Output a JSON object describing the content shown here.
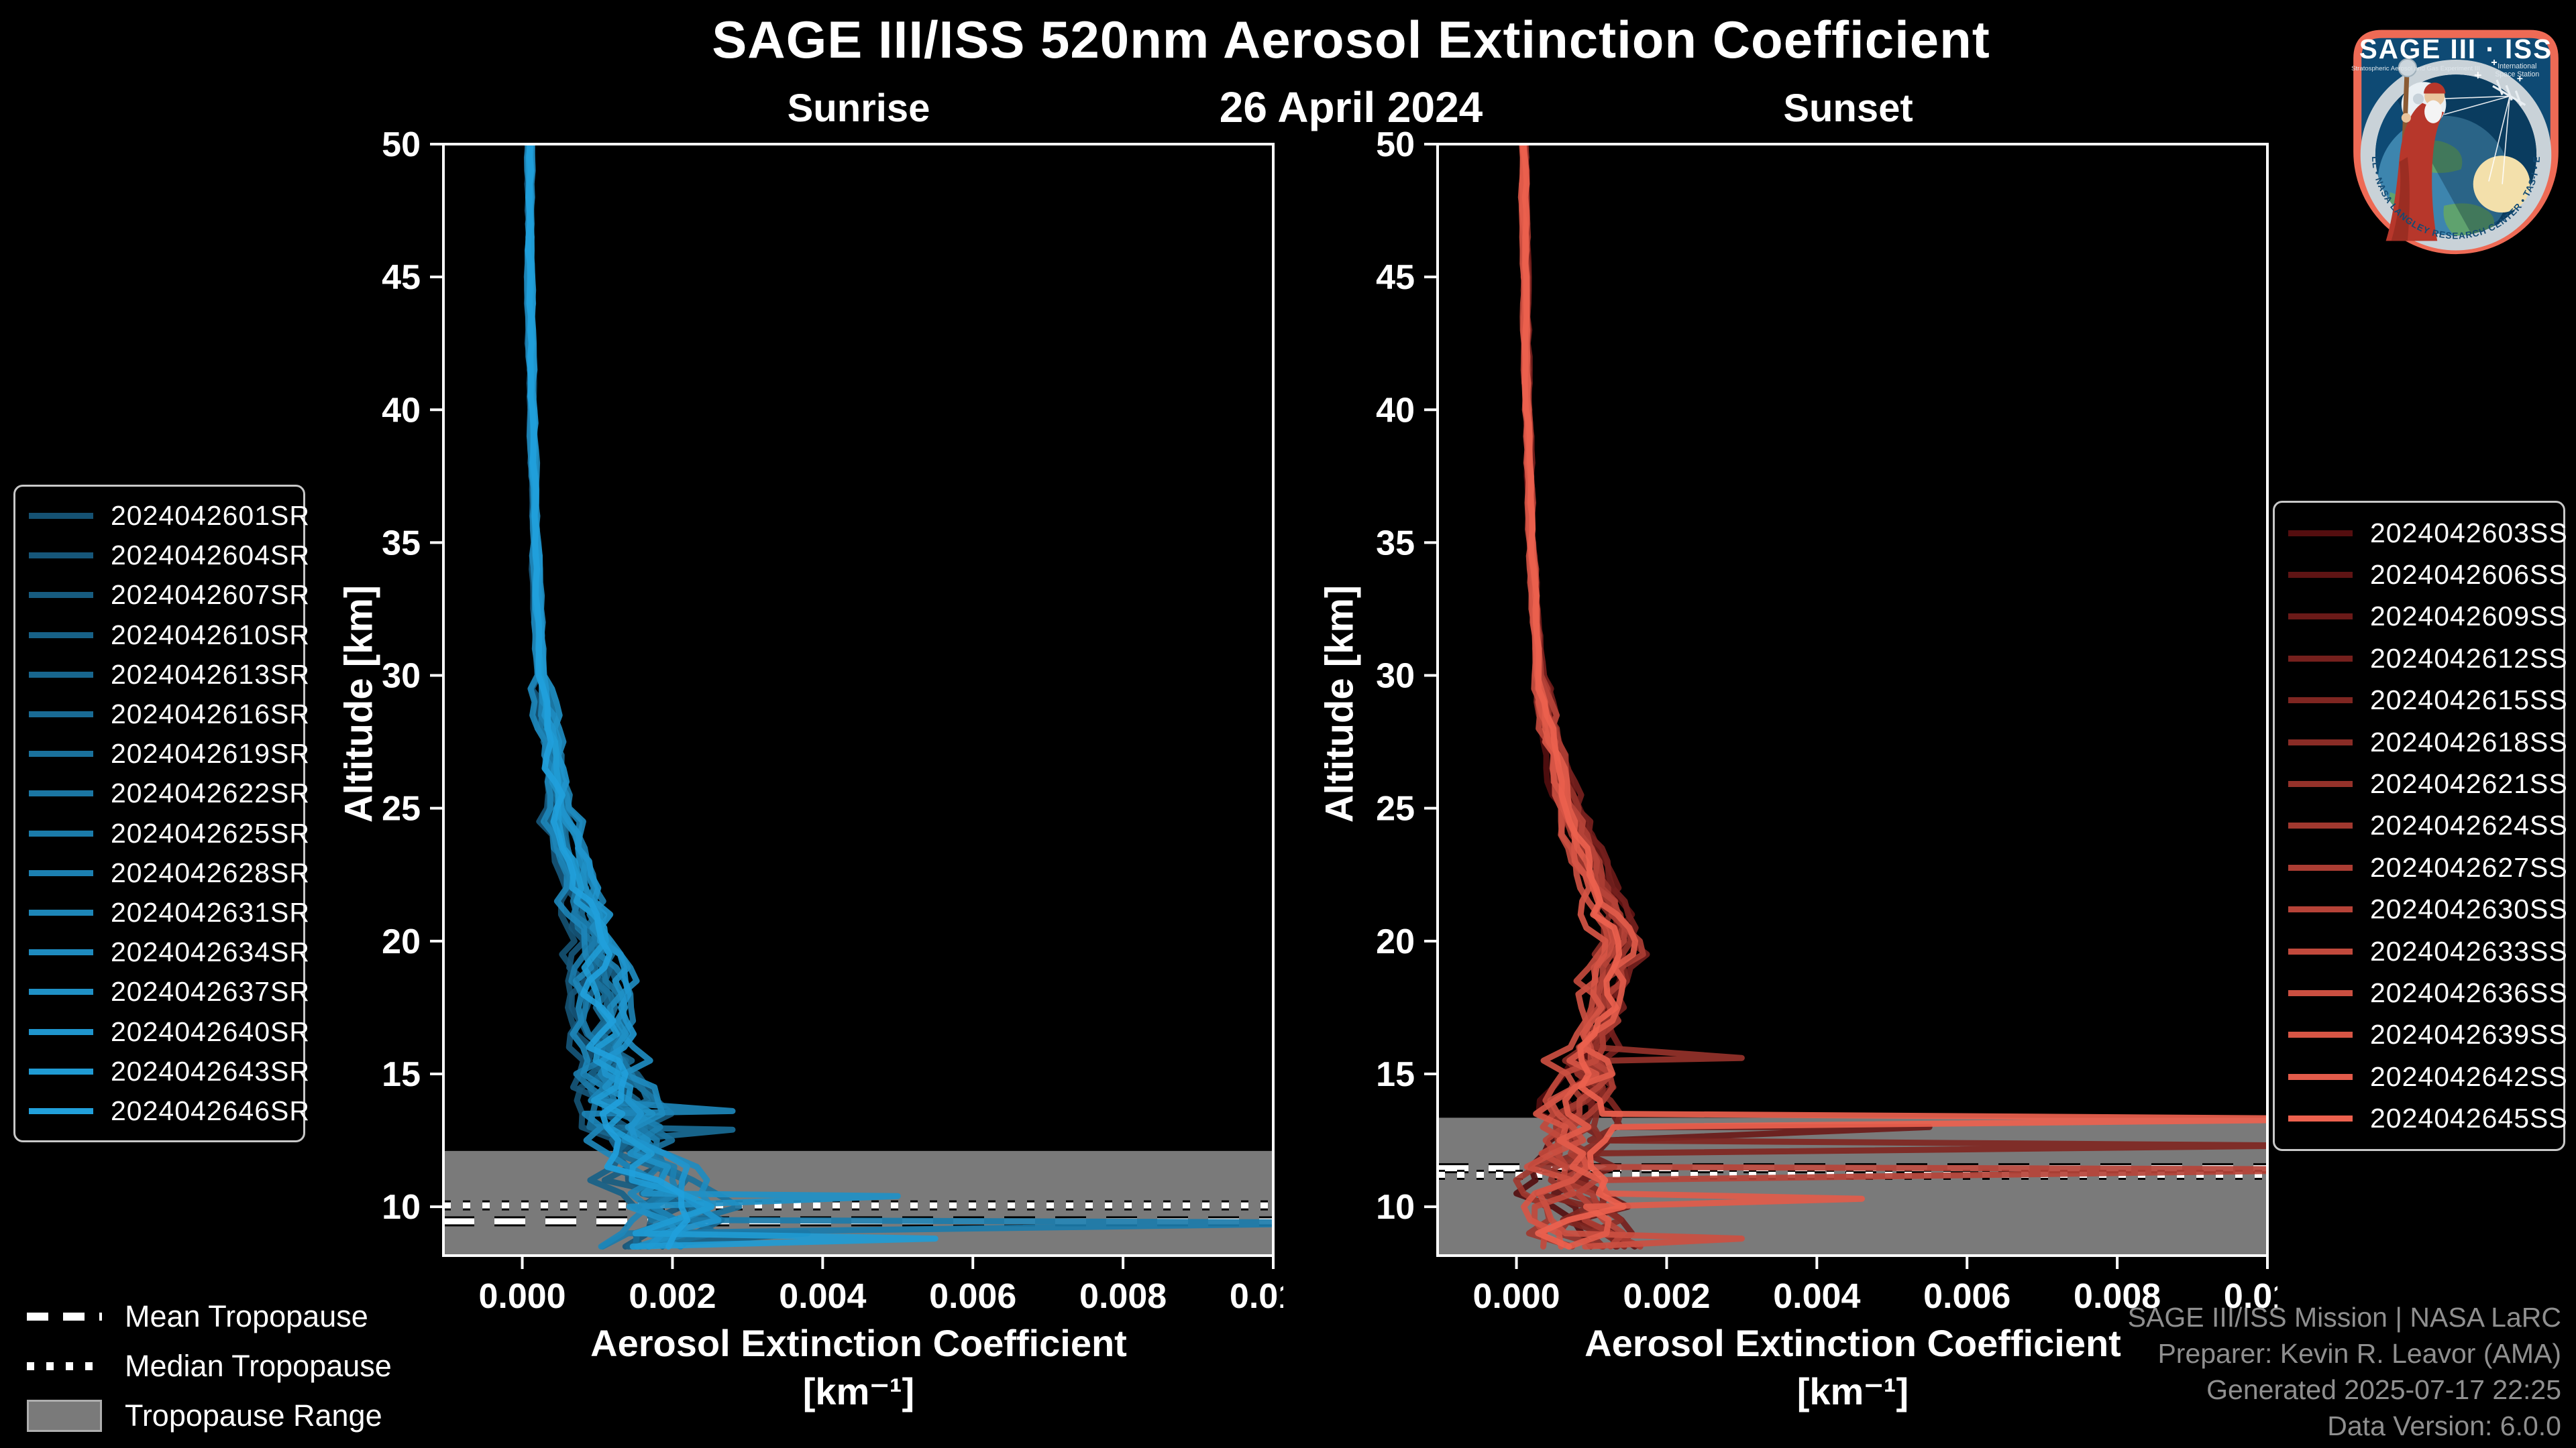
{
  "header": {
    "title": "SAGE III/ISS 520nm Aerosol Extinction Coefficient",
    "date": "26 April 2024",
    "left_panel_title": "Sunrise",
    "right_panel_title": "Sunset"
  },
  "axes": {
    "ylabel": "Altitude [km]",
    "xlabel_line1": "Aerosol Extinction Coefficient",
    "xlabel_line2": "[km⁻¹]"
  },
  "tropopause_legend": {
    "mean": "Mean Tropopause",
    "median": "Median Tropopause",
    "range": "Tropopause Range"
  },
  "credits": {
    "line1": "SAGE III/ISS Mission | NASA LaRC",
    "line2": "Preparer: Kevin R. Leavor (AMA)",
    "line3": "Generated 2025-07-17 22:25",
    "line4": "Data Version: 6.0.0"
  },
  "logo": {
    "title": "SAGE III · ISS",
    "subtitle_left": "Stratospheric Aerosol and Gas Experiment III",
    "subtitle_right_1": "International",
    "subtitle_right_2": "Space Station",
    "ring_text": "BALL • NASA LANGLEY RESEARCH CENTER • TAS-I • ESA"
  },
  "chart_data": [
    {
      "type": "line",
      "panel": "sunrise",
      "title": "Sunrise",
      "xlabel": "Aerosol Extinction Coefficient [km⁻¹]",
      "ylabel": "Altitude [km]",
      "xlim": [
        -0.00105,
        0.01
      ],
      "ylim": [
        8.16,
        50
      ],
      "xticks": [
        0.0,
        0.002,
        0.004,
        0.006,
        0.008,
        0.01
      ],
      "yticks": [
        10,
        15,
        20,
        25,
        30,
        35,
        40,
        45,
        50
      ],
      "grid": false,
      "legend_position": "outside-left",
      "line_color_start": "#155172",
      "line_color_end": "#21A0DB",
      "band_color": "#7a7a7a",
      "series": [
        "2024042601SR",
        "2024042604SR",
        "2024042607SR",
        "2024042610SR",
        "2024042613SR",
        "2024042616SR",
        "2024042619SR",
        "2024042622SR",
        "2024042625SR",
        "2024042628SR",
        "2024042631SR",
        "2024042634SR",
        "2024042637SR",
        "2024042640SR",
        "2024042643SR",
        "2024042646SR"
      ],
      "base_profile": [
        [
          50,
          0.0001
        ],
        [
          45,
          0.0001
        ],
        [
          40,
          0.00013
        ],
        [
          35,
          0.00018
        ],
        [
          30,
          0.00025
        ],
        [
          27,
          0.0004
        ],
        [
          25,
          0.0005
        ],
        [
          24,
          0.0006
        ],
        [
          23,
          0.0007
        ],
        [
          21,
          0.00085
        ],
        [
          20,
          0.00095
        ],
        [
          18,
          0.00105
        ],
        [
          16,
          0.0011
        ],
        [
          14,
          0.00125
        ],
        [
          13,
          0.0014
        ],
        [
          12,
          0.0015
        ],
        [
          11,
          0.0016
        ],
        [
          10,
          0.0019
        ],
        [
          9.4,
          0.0021
        ],
        [
          9,
          0.0019
        ],
        [
          8.2,
          0.0016
        ]
      ],
      "spikes": [
        {
          "series": 8,
          "alt": 9.4,
          "value": 0.0115
        },
        {
          "series": 12,
          "alt": 10.4,
          "value": 0.005
        },
        {
          "series": 5,
          "alt": 12.9,
          "value": 0.0028
        },
        {
          "series": 14,
          "alt": 8.8,
          "value": 0.0055
        },
        {
          "series": 3,
          "alt": 9.0,
          "value": 0.0038
        },
        {
          "series": 10,
          "alt": 13.6,
          "value": 0.0028
        }
      ],
      "tropopause": {
        "mean_km": 9.45,
        "median_km": 10.05,
        "range_top_km": 12.1,
        "range_bottom_km": 8.16
      }
    },
    {
      "type": "line",
      "panel": "sunset",
      "title": "Sunset",
      "xlabel": "Aerosol Extinction Coefficient [km⁻¹]",
      "ylabel": "Altitude [km]",
      "xlim": [
        -0.00105,
        0.01
      ],
      "ylim": [
        8.16,
        50
      ],
      "xticks": [
        0.0,
        0.002,
        0.004,
        0.006,
        0.008,
        0.01
      ],
      "yticks": [
        10,
        15,
        20,
        25,
        30,
        35,
        40,
        45,
        50
      ],
      "grid": false,
      "legend_position": "outside-right",
      "line_color_start": "#540E0F",
      "line_color_end": "#EC614E",
      "band_color": "#7a7a7a",
      "series": [
        "2024042603SS",
        "2024042606SS",
        "2024042609SS",
        "2024042612SS",
        "2024042615SS",
        "2024042618SS",
        "2024042621SS",
        "2024042624SS",
        "2024042627SS",
        "2024042630SS",
        "2024042633SS",
        "2024042636SS",
        "2024042639SS",
        "2024042642SS",
        "2024042645SS"
      ],
      "base_profile": [
        [
          50,
          0.0001
        ],
        [
          45,
          0.00012
        ],
        [
          40,
          0.00015
        ],
        [
          35,
          0.0002
        ],
        [
          30,
          0.0003
        ],
        [
          28,
          0.00045
        ],
        [
          26,
          0.0006
        ],
        [
          24,
          0.0008
        ],
        [
          22,
          0.0011
        ],
        [
          21,
          0.0012
        ],
        [
          20,
          0.00135
        ],
        [
          19,
          0.0013
        ],
        [
          18,
          0.0012
        ],
        [
          17,
          0.0011
        ],
        [
          16,
          0.001
        ],
        [
          15,
          0.0009
        ],
        [
          14,
          0.00085
        ],
        [
          13,
          0.0008
        ],
        [
          12,
          0.00075
        ],
        [
          11,
          0.00075
        ],
        [
          10,
          0.00075
        ],
        [
          9,
          0.0008
        ],
        [
          8.2,
          0.0009
        ]
      ],
      "spikes": [
        {
          "series": 14,
          "alt": 13.3,
          "value": 0.0115
        },
        {
          "series": 4,
          "alt": 12.3,
          "value": 0.0105
        },
        {
          "series": 9,
          "alt": 11.4,
          "value": 0.0115
        },
        {
          "series": 13,
          "alt": 10.3,
          "value": 0.0046
        },
        {
          "series": 6,
          "alt": 15.6,
          "value": 0.003
        },
        {
          "series": 2,
          "alt": 13.0,
          "value": 0.0055
        },
        {
          "series": 11,
          "alt": 8.8,
          "value": 0.003
        }
      ],
      "tropopause": {
        "mean_km": 11.45,
        "median_km": 11.2,
        "range_top_km": 13.35,
        "range_bottom_km": 8.16
      }
    }
  ]
}
